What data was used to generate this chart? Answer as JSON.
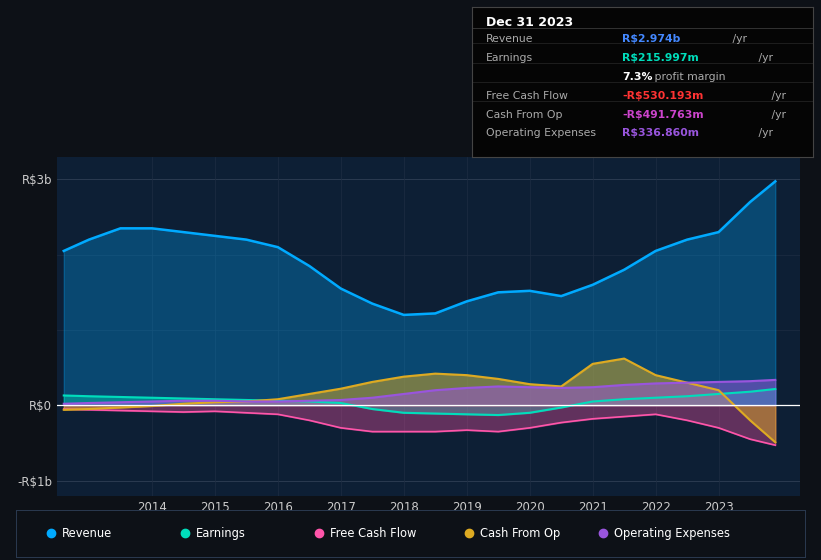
{
  "bg_color": "#0d1117",
  "plot_bg_color": "#0d1f35",
  "ylim": [
    -1200,
    3300
  ],
  "yticks": [
    -1000,
    0,
    3000
  ],
  "ytick_labels": [
    "-R$1b",
    "R$0",
    "R$3b"
  ],
  "xmin": 2012.5,
  "xmax": 2024.3,
  "xticks": [
    2014,
    2015,
    2016,
    2017,
    2018,
    2019,
    2020,
    2021,
    2022,
    2023
  ],
  "legend_items": [
    "Revenue",
    "Earnings",
    "Free Cash Flow",
    "Cash From Op",
    "Operating Expenses"
  ],
  "legend_colors": [
    "#00aaff",
    "#00ddbb",
    "#ff55aa",
    "#ddaa22",
    "#9955dd"
  ],
  "rev_color": "#00aaff",
  "earn_color": "#00ddbb",
  "fcf_color": "#ff55aa",
  "cfo_color": "#ddaa22",
  "opex_color": "#9955dd",
  "years": [
    2012.6,
    2013.0,
    2013.5,
    2014.0,
    2014.5,
    2015.0,
    2015.5,
    2016.0,
    2016.5,
    2017.0,
    2017.5,
    2018.0,
    2018.5,
    2019.0,
    2019.5,
    2020.0,
    2020.5,
    2021.0,
    2021.5,
    2022.0,
    2022.5,
    2023.0,
    2023.5,
    2023.9
  ],
  "revenue": [
    2050,
    2200,
    2350,
    2350,
    2300,
    2250,
    2200,
    2100,
    1850,
    1550,
    1350,
    1200,
    1220,
    1380,
    1500,
    1520,
    1450,
    1600,
    1800,
    2050,
    2200,
    2300,
    2700,
    2974
  ],
  "earnings": [
    130,
    120,
    110,
    100,
    90,
    80,
    70,
    60,
    50,
    30,
    -50,
    -100,
    -110,
    -120,
    -130,
    -100,
    -30,
    50,
    80,
    100,
    120,
    150,
    180,
    216
  ],
  "free_cash_flow": [
    -50,
    -60,
    -70,
    -80,
    -90,
    -80,
    -100,
    -120,
    -200,
    -300,
    -350,
    -350,
    -350,
    -330,
    -350,
    -300,
    -230,
    -180,
    -150,
    -120,
    -200,
    -300,
    -450,
    -530
  ],
  "cash_from_op": [
    -60,
    -50,
    -30,
    -10,
    20,
    40,
    50,
    80,
    150,
    220,
    310,
    380,
    420,
    400,
    350,
    280,
    250,
    550,
    620,
    400,
    300,
    200,
    -200,
    -492
  ],
  "operating_expenses": [
    20,
    30,
    40,
    50,
    60,
    60,
    50,
    50,
    60,
    70,
    100,
    150,
    200,
    230,
    250,
    240,
    230,
    240,
    270,
    290,
    300,
    310,
    320,
    337
  ],
  "info_title": "Dec 31 2023",
  "info_rows": [
    {
      "label": "Revenue",
      "value": "R$2.974b",
      "suffix": " /yr",
      "vcolor": "#4488ff"
    },
    {
      "label": "Earnings",
      "value": "R$215.997m",
      "suffix": " /yr",
      "vcolor": "#00ddbb"
    },
    {
      "label": "",
      "value": "7.3%",
      "suffix": " profit margin",
      "vcolor": "#ffffff",
      "is_margin": true
    },
    {
      "label": "Free Cash Flow",
      "value": "-R$530.193m",
      "suffix": " /yr",
      "vcolor": "#ff3333"
    },
    {
      "label": "Cash From Op",
      "value": "-R$491.763m",
      "suffix": " /yr",
      "vcolor": "#cc44cc"
    },
    {
      "label": "Operating Expenses",
      "value": "R$336.860m",
      "suffix": " /yr",
      "vcolor": "#9955dd"
    }
  ]
}
